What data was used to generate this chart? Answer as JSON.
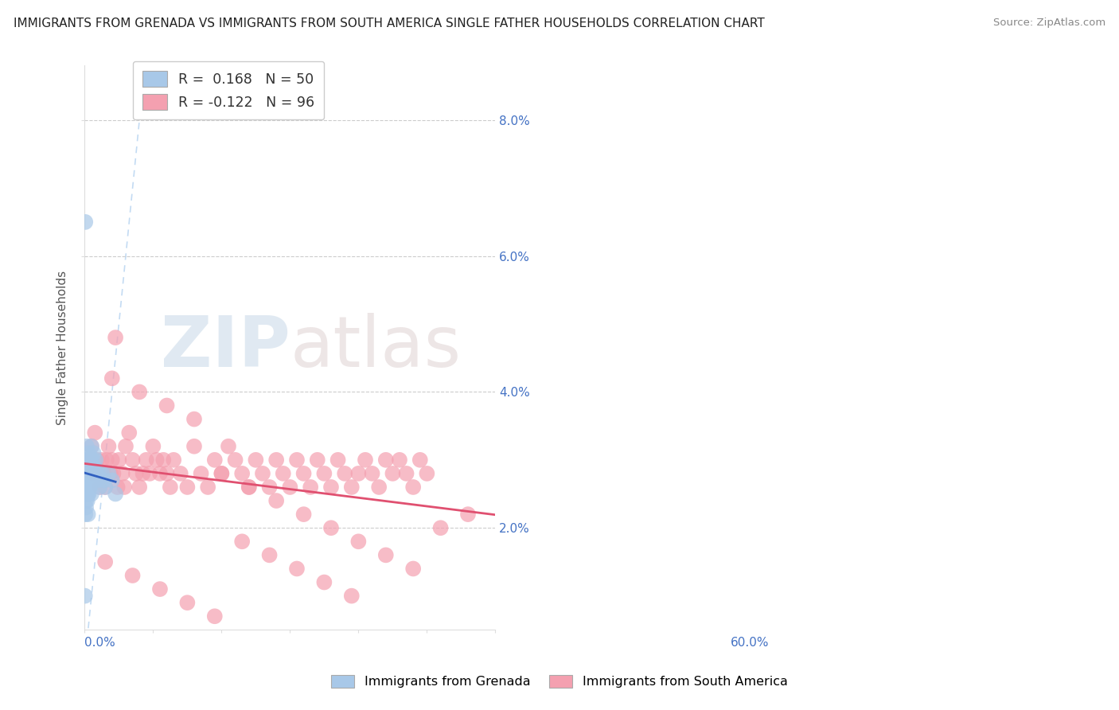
{
  "title": "IMMIGRANTS FROM GRENADA VS IMMIGRANTS FROM SOUTH AMERICA SINGLE FATHER HOUSEHOLDS CORRELATION CHART",
  "source": "Source: ZipAtlas.com",
  "ylabel": "Single Father Households",
  "ytick_values": [
    0.02,
    0.04,
    0.06,
    0.08
  ],
  "ytick_labels": [
    "2.0%",
    "4.0%",
    "6.0%",
    "8.0%"
  ],
  "xlim": [
    0.0,
    0.6
  ],
  "ylim": [
    0.005,
    0.088
  ],
  "legend_label1": "R =  0.168   N = 50",
  "legend_label2": "R = -0.122   N = 96",
  "series1_color": "#a8c8e8",
  "series2_color": "#f4a0b0",
  "line1_color": "#3060c0",
  "line2_color": "#e05070",
  "watermark_zip": "ZIP",
  "watermark_atlas": "atlas",
  "bottom_label1": "Immigrants from Grenada",
  "bottom_label2": "Immigrants from South America",
  "grenada_x": [
    0.0005,
    0.001,
    0.001,
    0.001,
    0.0015,
    0.002,
    0.002,
    0.002,
    0.002,
    0.0025,
    0.003,
    0.003,
    0.003,
    0.003,
    0.004,
    0.004,
    0.004,
    0.004,
    0.005,
    0.005,
    0.005,
    0.005,
    0.006,
    0.006,
    0.006,
    0.007,
    0.007,
    0.008,
    0.008,
    0.009,
    0.009,
    0.01,
    0.01,
    0.01,
    0.011,
    0.012,
    0.013,
    0.014,
    0.015,
    0.016,
    0.018,
    0.02,
    0.022,
    0.025,
    0.028,
    0.03,
    0.035,
    0.04,
    0.045,
    0.001
  ],
  "grenada_y": [
    0.01,
    0.025,
    0.027,
    0.022,
    0.03,
    0.023,
    0.026,
    0.024,
    0.028,
    0.029,
    0.025,
    0.027,
    0.03,
    0.032,
    0.024,
    0.026,
    0.028,
    0.03,
    0.022,
    0.025,
    0.028,
    0.03,
    0.025,
    0.028,
    0.031,
    0.026,
    0.03,
    0.026,
    0.029,
    0.027,
    0.03,
    0.025,
    0.027,
    0.032,
    0.028,
    0.03,
    0.031,
    0.029,
    0.028,
    0.03,
    0.027,
    0.028,
    0.026,
    0.028,
    0.027,
    0.026,
    0.028,
    0.027,
    0.025,
    0.065
  ],
  "sa_x": [
    0.005,
    0.01,
    0.012,
    0.015,
    0.018,
    0.02,
    0.022,
    0.025,
    0.028,
    0.03,
    0.032,
    0.035,
    0.038,
    0.04,
    0.042,
    0.045,
    0.048,
    0.05,
    0.055,
    0.058,
    0.06,
    0.065,
    0.07,
    0.075,
    0.08,
    0.085,
    0.09,
    0.095,
    0.1,
    0.105,
    0.11,
    0.115,
    0.12,
    0.125,
    0.13,
    0.14,
    0.15,
    0.16,
    0.17,
    0.18,
    0.19,
    0.2,
    0.21,
    0.22,
    0.23,
    0.24,
    0.25,
    0.26,
    0.27,
    0.28,
    0.29,
    0.3,
    0.31,
    0.32,
    0.33,
    0.34,
    0.35,
    0.36,
    0.37,
    0.38,
    0.39,
    0.4,
    0.41,
    0.42,
    0.43,
    0.44,
    0.45,
    0.46,
    0.47,
    0.48,
    0.49,
    0.5,
    0.04,
    0.08,
    0.12,
    0.16,
    0.2,
    0.24,
    0.28,
    0.32,
    0.36,
    0.4,
    0.44,
    0.48,
    0.52,
    0.56,
    0.03,
    0.07,
    0.11,
    0.15,
    0.19,
    0.23,
    0.27,
    0.31,
    0.35,
    0.39
  ],
  "sa_y": [
    0.03,
    0.032,
    0.028,
    0.034,
    0.03,
    0.028,
    0.026,
    0.03,
    0.028,
    0.026,
    0.03,
    0.032,
    0.028,
    0.03,
    0.028,
    0.048,
    0.026,
    0.03,
    0.028,
    0.026,
    0.032,
    0.034,
    0.03,
    0.028,
    0.026,
    0.028,
    0.03,
    0.028,
    0.032,
    0.03,
    0.028,
    0.03,
    0.028,
    0.026,
    0.03,
    0.028,
    0.026,
    0.032,
    0.028,
    0.026,
    0.03,
    0.028,
    0.032,
    0.03,
    0.028,
    0.026,
    0.03,
    0.028,
    0.026,
    0.03,
    0.028,
    0.026,
    0.03,
    0.028,
    0.026,
    0.03,
    0.028,
    0.026,
    0.03,
    0.028,
    0.026,
    0.028,
    0.03,
    0.028,
    0.026,
    0.03,
    0.028,
    0.03,
    0.028,
    0.026,
    0.03,
    0.028,
    0.042,
    0.04,
    0.038,
    0.036,
    0.028,
    0.026,
    0.024,
    0.022,
    0.02,
    0.018,
    0.016,
    0.014,
    0.02,
    0.022,
    0.015,
    0.013,
    0.011,
    0.009,
    0.007,
    0.018,
    0.016,
    0.014,
    0.012,
    0.01
  ]
}
